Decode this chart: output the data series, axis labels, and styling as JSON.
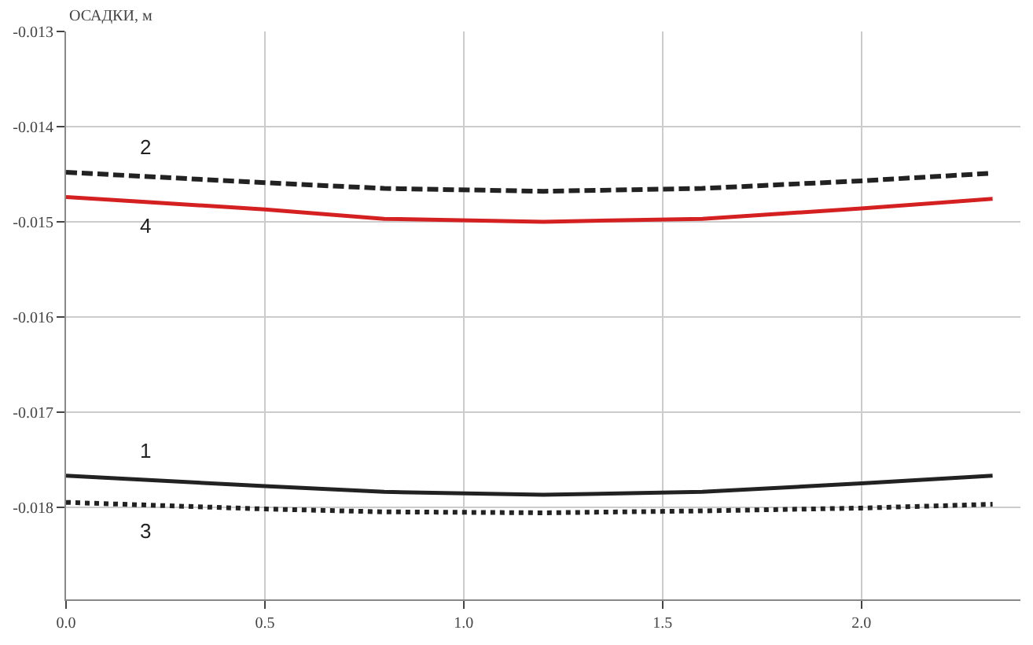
{
  "chart_data": {
    "type": "line",
    "ylabel": "ОСАДКИ, м",
    "xlim": [
      0,
      2.4
    ],
    "ylim": [
      -0.01897,
      -0.013
    ],
    "xticks": [
      {
        "value": 0,
        "label": "0.0"
      },
      {
        "value": 0.5,
        "label": "0.5"
      },
      {
        "value": 1,
        "label": "1.0"
      },
      {
        "value": 1.5,
        "label": "1.5"
      },
      {
        "value": 2,
        "label": "2.0"
      }
    ],
    "yticks": [
      -0.018,
      -0.017,
      -0.016,
      -0.015,
      -0.014,
      -0.013
    ],
    "grid": true,
    "legend": false,
    "marker": "none",
    "series": [
      {
        "name": "2",
        "color": "#222222",
        "line_style": "dashed",
        "x": [
          0,
          0.5,
          0.8,
          1.2,
          1.6,
          2.0,
          2.33
        ],
        "values": [
          -0.01448,
          -0.01459,
          -0.01465,
          -0.01468,
          -0.01465,
          -0.01457,
          -0.01449
        ]
      },
      {
        "name": "4",
        "color": "#d42020",
        "line_style": "solid",
        "x": [
          0,
          0.5,
          0.8,
          1.2,
          1.6,
          2.0,
          2.33
        ],
        "values": [
          -0.01474,
          -0.01487,
          -0.01497,
          -0.015,
          -0.01497,
          -0.01486,
          -0.01476
        ]
      },
      {
        "name": "1",
        "color": "#222222",
        "line_style": "solid",
        "x": [
          0,
          0.5,
          0.8,
          1.2,
          1.6,
          2.0,
          2.33
        ],
        "values": [
          -0.01767,
          -0.01778,
          -0.01784,
          -0.01787,
          -0.01784,
          -0.01775,
          -0.01767
        ]
      },
      {
        "name": "3",
        "color": "#222222",
        "line_style": "dotted",
        "x": [
          0,
          0.5,
          0.8,
          1.2,
          1.6,
          2.0,
          2.33
        ],
        "values": [
          -0.01795,
          -0.01802,
          -0.01805,
          -0.01806,
          -0.01804,
          -0.01801,
          -0.01797
        ]
      }
    ]
  }
}
